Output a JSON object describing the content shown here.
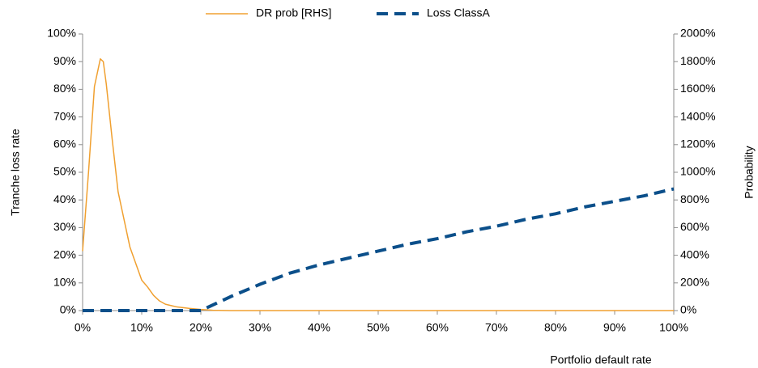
{
  "chart_data": {
    "type": "line",
    "x_label": "Portfolio default rate",
    "y_label": "Tranche loss rate",
    "y2_label": "Probability",
    "xlim": [
      0,
      100
    ],
    "xticks": [
      {
        "value": 0,
        "label": "0%"
      },
      {
        "value": 10,
        "label": "10%"
      },
      {
        "value": 20,
        "label": "20%"
      },
      {
        "value": 30,
        "label": "30%"
      },
      {
        "value": 40,
        "label": "40%"
      },
      {
        "value": 50,
        "label": "50%"
      },
      {
        "value": 60,
        "label": "60%"
      },
      {
        "value": 70,
        "label": "70%"
      },
      {
        "value": 80,
        "label": "80%"
      },
      {
        "value": 90,
        "label": "90%"
      },
      {
        "value": 100,
        "label": "100%"
      }
    ],
    "ylim": [
      0,
      100
    ],
    "yticks": [
      {
        "value": 0,
        "label": "0%"
      },
      {
        "value": 10,
        "label": "10%"
      },
      {
        "value": 20,
        "label": "20%"
      },
      {
        "value": 30,
        "label": "30%"
      },
      {
        "value": 40,
        "label": "40%"
      },
      {
        "value": 50,
        "label": "50%"
      },
      {
        "value": 60,
        "label": "60%"
      },
      {
        "value": 70,
        "label": "70%"
      },
      {
        "value": 80,
        "label": "80%"
      },
      {
        "value": 90,
        "label": "90%"
      },
      {
        "value": 100,
        "label": "100%"
      }
    ],
    "y2lim": [
      0,
      2000
    ],
    "y2ticks": [
      {
        "value": 0,
        "label": "0%"
      },
      {
        "value": 200,
        "label": "200%"
      },
      {
        "value": 400,
        "label": "400%"
      },
      {
        "value": 600,
        "label": "600%"
      },
      {
        "value": 800,
        "label": "800%"
      },
      {
        "value": 1000,
        "label": "1000%"
      },
      {
        "value": 1200,
        "label": "1200%"
      },
      {
        "value": 1400,
        "label": "1400%"
      },
      {
        "value": 1600,
        "label": "1600%"
      },
      {
        "value": 1800,
        "label": "1800%"
      },
      {
        "value": 2000,
        "label": "2000%"
      }
    ],
    "series": [
      {
        "name": "DR prob [RHS]",
        "color": "#f0a030",
        "axis": "y2",
        "dashed": false,
        "x": [
          0,
          1,
          2,
          3,
          3.5,
          4,
          5,
          6,
          7,
          8,
          9,
          10,
          11,
          12,
          13,
          14,
          15,
          16,
          18,
          20,
          22,
          25,
          100
        ],
        "values": [
          430,
          1000,
          1620,
          1820,
          1800,
          1640,
          1240,
          860,
          660,
          460,
          340,
          220,
          170,
          110,
          70,
          46,
          36,
          26,
          16,
          8,
          2,
          0,
          0
        ]
      },
      {
        "name": "Loss ClassA",
        "color": "#0b4f8a",
        "dashed": true,
        "x": [
          0,
          5,
          10,
          15,
          20,
          25,
          30,
          35,
          40,
          45,
          50,
          55,
          60,
          65,
          70,
          75,
          80,
          85,
          90,
          95,
          100
        ],
        "values": [
          0,
          0,
          0,
          0,
          0,
          5,
          9.5,
          13.5,
          16.5,
          19,
          21.5,
          24,
          26,
          28.5,
          30.5,
          33,
          35,
          37.5,
          39.5,
          41.5,
          44
        ]
      }
    ]
  }
}
